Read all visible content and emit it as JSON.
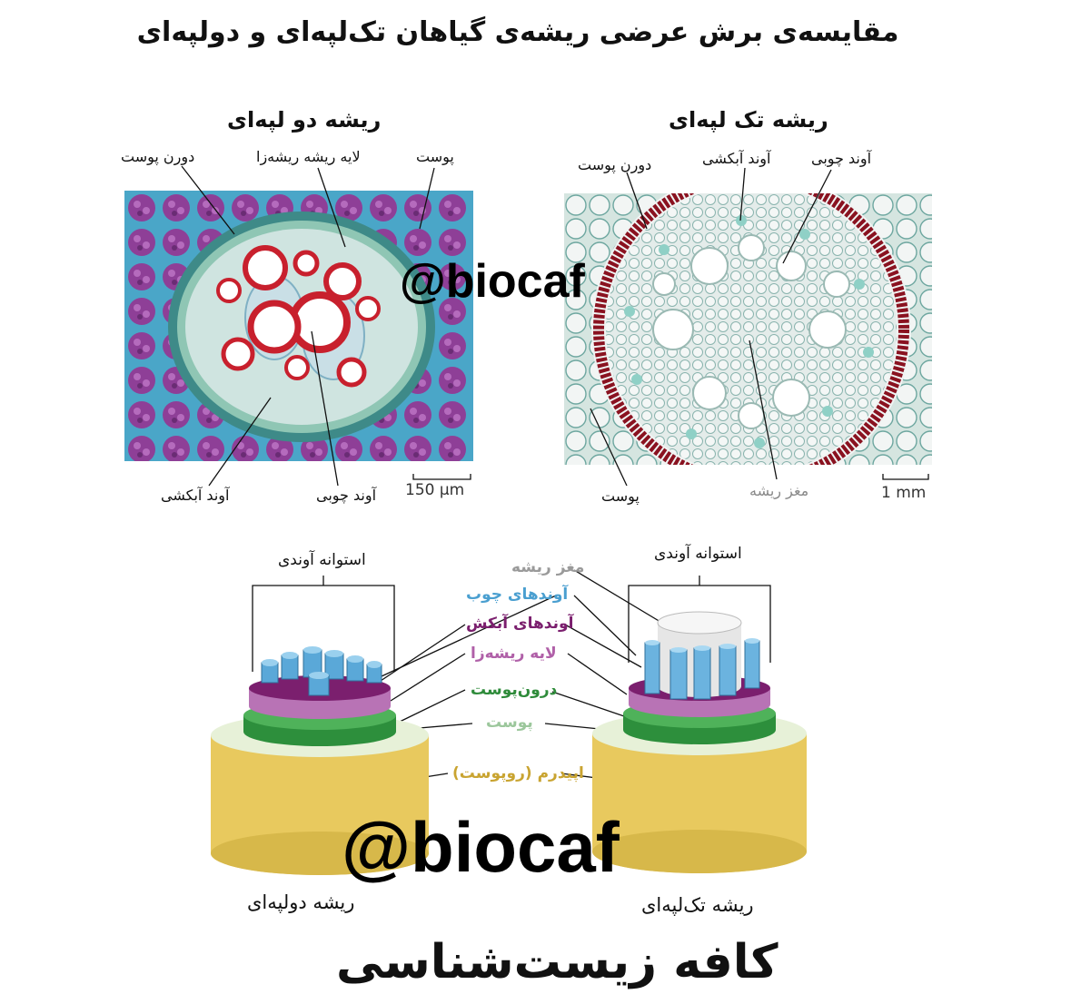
{
  "title": "مقایسه‌ی برش عرضی ریشه‌ی گیاهان تک‌لپه‌ای و دولپه‌ای",
  "dicot_panel": {
    "title": "ریشه دو لپه‌ای",
    "labels": {
      "endodermis": "دورن پوست",
      "pericycle": "لایه ریشه ریشه‌زا",
      "cortex": "پوست",
      "phloem": "آوند آبکشی",
      "xylem": "آوند چوبی"
    },
    "scale": "150 µm"
  },
  "monocot_panel": {
    "title": "ریشه تک لپه‌ای",
    "labels": {
      "endodermis": "دورن پوست",
      "phloem": "آوند آبکشی",
      "xylem": "آوند چوبی",
      "cortex": "پوست",
      "pith": "مغز ریشه"
    },
    "scale": "1 mm"
  },
  "diagram": {
    "left_bracket": "استوانه آوندی",
    "right_bracket": "استوانه آوندی",
    "pith": "مغز ریشه",
    "xylem": "آوندهای چوب",
    "phloem": "آوندهای آبکش",
    "pericycle": "لایه ریشه‌زا",
    "endodermis": "درون‌پوست",
    "cortex": "پوست",
    "epidermis": "اپیدرم (روپوست)",
    "dicot_caption": "ریشه دولپه‌ای",
    "monocot_caption": "ریشه تک‌لپه‌ای",
    "colors": {
      "pith": "#9a9a9a",
      "xylem": "#4a9fd0",
      "phloem": "#7b1f6e",
      "pericycle": "#b060a8",
      "endodermis": "#2e8b3a",
      "cortex": "#9cc79c",
      "epidermis": "#c9a431"
    }
  },
  "watermark_top": "@biocaf",
  "watermark_bottom": "@biocaf",
  "footer": "کافه زیست‌شناسی"
}
